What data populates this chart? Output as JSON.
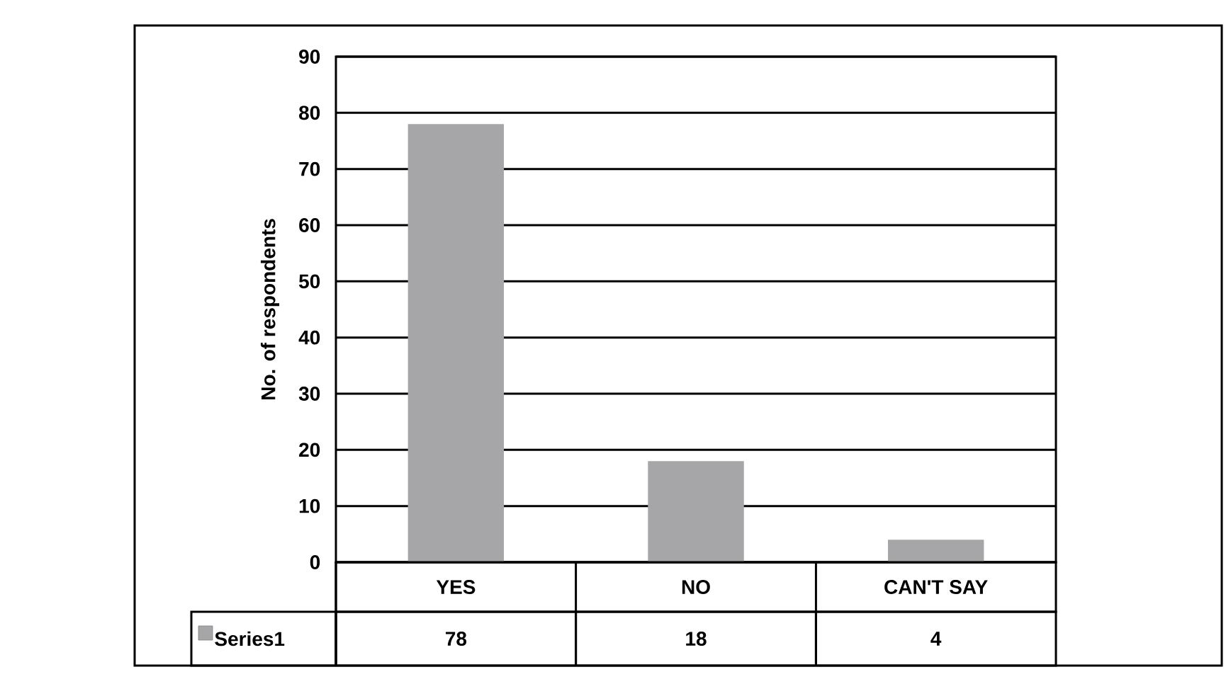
{
  "chart_data": {
    "type": "bar",
    "ylabel": "No. of respondents",
    "categories": [
      "YES",
      "NO",
      "CAN'T SAY"
    ],
    "series": [
      {
        "name": "Series1",
        "color": "#a6a6a8",
        "values": [
          78,
          18,
          4
        ]
      }
    ],
    "ylim": [
      0,
      90
    ],
    "yticks": [
      0,
      10,
      20,
      30,
      40,
      50,
      60,
      70,
      80,
      90
    ],
    "grid": "y",
    "legend": "bottom",
    "data_labels": true
  }
}
